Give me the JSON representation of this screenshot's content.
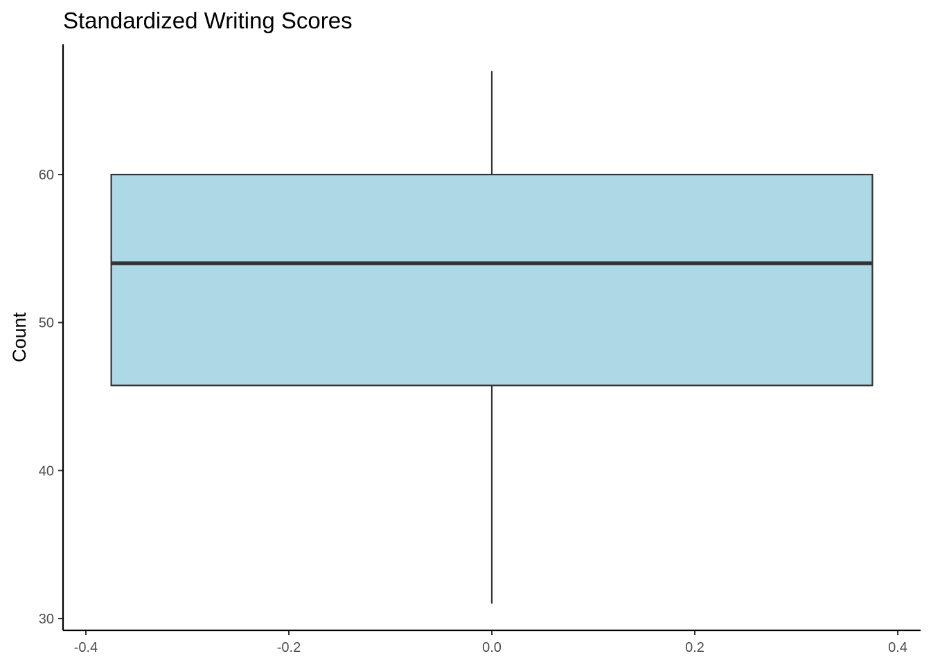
{
  "chart_data": {
    "type": "boxplot",
    "title": "Standardized Writing Scores",
    "xlabel": "",
    "ylabel": "Count",
    "xlim": [
      -0.4225,
      0.4225
    ],
    "ylim": [
      29.2,
      68.8
    ],
    "xticks": [
      -0.4,
      -0.2,
      0.0,
      0.2,
      0.4
    ],
    "xtick_labels": [
      "-0.4",
      "-0.2",
      "0.0",
      "0.2",
      "0.4"
    ],
    "yticks": [
      30,
      40,
      50,
      60
    ],
    "ytick_labels": [
      "30",
      "40",
      "50",
      "60"
    ],
    "grid": false,
    "legend": "none",
    "box": {
      "x_center": 0.0,
      "width": 0.75,
      "whisker_low": 31,
      "q1": 45.75,
      "median": 54,
      "q3": 60,
      "whisker_high": 67
    },
    "colors": {
      "box_fill": "#add8e6",
      "box_stroke": "#333333",
      "axis": "#000000",
      "tick_label": "#4d4d4d"
    }
  }
}
